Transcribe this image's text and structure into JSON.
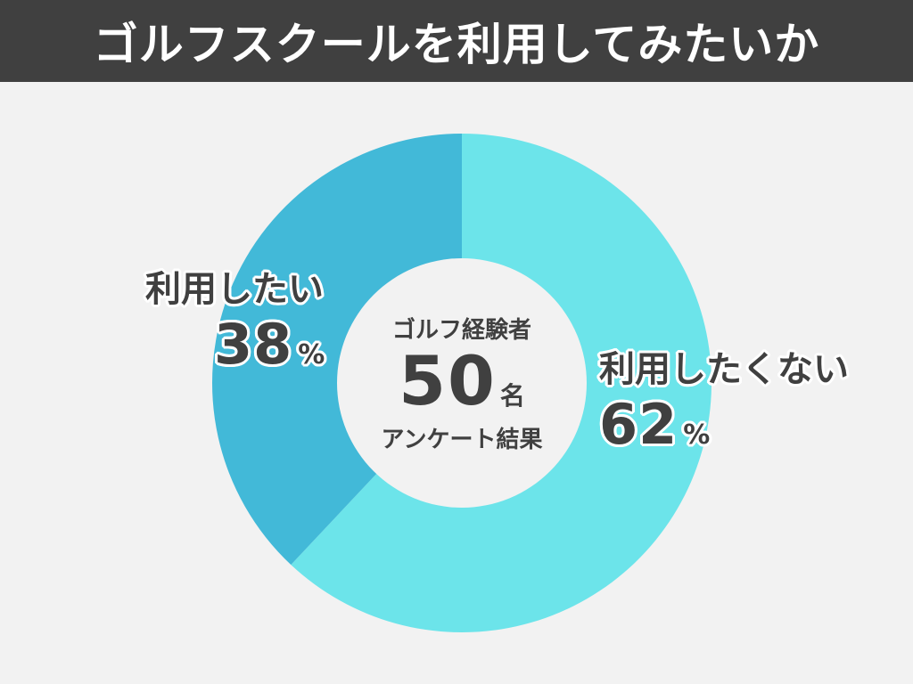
{
  "header": {
    "title": "ゴルフスクールを利用してみたいか"
  },
  "center": {
    "top_text": "ゴルフ経験者",
    "count": "50",
    "count_unit": "名",
    "bottom_text": "アンケート結果"
  },
  "colors": {
    "header_bg": "#404040",
    "background": "#f2f2f2",
    "text": "#404040",
    "slice_no": "#6ce4ea",
    "slice_yes": "#42b9d8",
    "center_hole": "#f2f2f2"
  },
  "chart_data": {
    "type": "pie",
    "donut": true,
    "title": "ゴルフスクールを利用してみたいか",
    "slices": [
      {
        "label": "利用したくない",
        "value": 62,
        "display": "62",
        "unit": "%",
        "color": "#6ce4ea"
      },
      {
        "label": "利用したい",
        "value": 38,
        "display": "38",
        "unit": "%",
        "color": "#42b9d8"
      }
    ],
    "start": "12 o'clock",
    "direction": "clockwise"
  }
}
